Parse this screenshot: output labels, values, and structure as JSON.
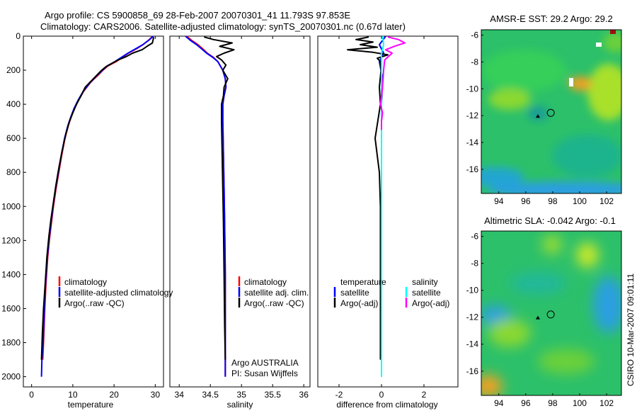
{
  "header": {
    "title_line1": "Argo profile: CS 5900858_69 28-Feb-2007 20070301_41 11.793S 97.853E",
    "title_line2": "Climatology: CARS2006. Satellite-adjusted climatology: synTS_20070301.nc (0.67d later)"
  },
  "colors": {
    "climatology": "#ff0000",
    "satellite": "#0000ff",
    "argo": "#000000",
    "satellite_diff": "#00ffff",
    "argo_adj_diff": "#ff00ff"
  },
  "depth_ticks": [
    "0",
    "200",
    "400",
    "600",
    "800",
    "1000",
    "1200",
    "1400",
    "1600",
    "1800",
    "2000"
  ],
  "chart_data": [
    {
      "type": "line",
      "name": "temperature",
      "xlabel": "temperature",
      "xlim": [
        -2,
        32
      ],
      "ylim": [
        2060,
        0
      ],
      "x_ticks": [
        0,
        10,
        20,
        30
      ],
      "x_tick_labels": [
        "0",
        "10",
        "20",
        "30"
      ],
      "legend": {
        "position": "bottom-right",
        "items": [
          "climatology",
          "satellite-adjusted climatology",
          "Argo(..raw -QC)"
        ]
      },
      "series": [
        {
          "name": "climatology",
          "color": "#ff0000",
          "x": [
            29.2,
            29.0,
            28.3,
            27.0,
            25.4,
            23.5,
            22.0,
            20.5,
            18.5,
            17.3,
            16.3,
            15.2,
            14.2,
            12.6,
            11.4,
            10.4,
            9.6,
            8.9,
            8.1,
            7.3,
            6.6,
            5.9,
            5.3,
            4.8,
            4.3,
            3.9,
            3.5,
            3.2,
            2.9,
            2.7
          ],
          "y": [
            0,
            10,
            25,
            50,
            75,
            100,
            125,
            150,
            175,
            200,
            225,
            250,
            275,
            325,
            375,
            425,
            475,
            525,
            600,
            700,
            800,
            900,
            1000,
            1100,
            1200,
            1300,
            1450,
            1600,
            1800,
            1900
          ]
        },
        {
          "name": "satellite-adjusted climatology",
          "color": "#0000ff",
          "x": [
            29.4,
            29.1,
            28.4,
            27.0,
            25.2,
            23.4,
            21.8,
            20.2,
            18.3,
            17.2,
            16.1,
            15.1,
            14.1,
            12.5,
            11.3,
            10.3,
            9.5,
            8.8,
            8.0,
            7.2,
            6.5,
            5.8,
            5.2,
            4.7,
            4.2,
            3.8,
            3.4,
            3.1,
            2.8,
            2.5,
            2.4
          ],
          "y": [
            0,
            10,
            25,
            50,
            75,
            100,
            125,
            150,
            175,
            200,
            225,
            250,
            275,
            325,
            375,
            425,
            475,
            525,
            600,
            700,
            800,
            900,
            1000,
            1100,
            1200,
            1300,
            1450,
            1600,
            1800,
            1900,
            2000
          ]
        },
        {
          "name": "Argo(..raw -QC)",
          "color": "#000000",
          "x": [
            29.6,
            29.5,
            29.3,
            28.0,
            26.8,
            24.5,
            23.0,
            21.0,
            19.5,
            18.0,
            17.0,
            16.0,
            15.0,
            13.0,
            12.0,
            10.9,
            10.0,
            9.2,
            8.3,
            7.4,
            6.6,
            5.9,
            5.3,
            4.7,
            4.2,
            3.7,
            3.3,
            2.9,
            2.6,
            2.4
          ],
          "y": [
            5,
            20,
            40,
            60,
            80,
            100,
            120,
            140,
            160,
            180,
            200,
            225,
            250,
            300,
            350,
            400,
            450,
            500,
            575,
            675,
            775,
            875,
            975,
            1075,
            1175,
            1300,
            1450,
            1600,
            1750,
            1900
          ]
        }
      ]
    },
    {
      "type": "line",
      "name": "salinity",
      "xlabel": "salinity",
      "xlim": [
        33.85,
        36.1
      ],
      "ylim": [
        2060,
        0
      ],
      "x_ticks": [
        34,
        34.5,
        35,
        35.5,
        36
      ],
      "x_tick_labels": [
        "34",
        "34.5",
        "35",
        "35.5",
        "36"
      ],
      "legend": {
        "position": "right",
        "items": [
          "climatology",
          "satellite adj. clim.",
          "Argo(..raw -QC)"
        ]
      },
      "annotations": [
        "Argo AUSTRALIA",
        "PI: Susan Wijffels"
      ],
      "series": [
        {
          "name": "climatology",
          "color": "#ff0000",
          "x": [
            34.12,
            34.2,
            34.3,
            34.38,
            34.45,
            34.55,
            34.62,
            34.7,
            34.74,
            34.75,
            34.72,
            34.7,
            34.7,
            34.71,
            34.72,
            34.73,
            34.74,
            34.74,
            34.74
          ],
          "y": [
            0,
            25,
            50,
            75,
            100,
            125,
            150,
            200,
            250,
            300,
            350,
            400,
            500,
            700,
            900,
            1100,
            1400,
            1700,
            2000
          ]
        },
        {
          "name": "satellite adj. clim.",
          "color": "#0000ff",
          "x": [
            34.1,
            34.18,
            34.28,
            34.36,
            34.44,
            34.54,
            34.62,
            34.7,
            34.74,
            34.75,
            34.72,
            34.7,
            34.7,
            34.71,
            34.72,
            34.73,
            34.74,
            34.74,
            34.74
          ],
          "y": [
            0,
            25,
            50,
            75,
            100,
            125,
            150,
            200,
            250,
            300,
            350,
            400,
            500,
            700,
            900,
            1100,
            1400,
            1700,
            2000
          ]
        },
        {
          "name": "Argo(..raw -QC)",
          "color": "#000000",
          "x": [
            34.4,
            34.55,
            34.85,
            34.65,
            34.88,
            34.72,
            34.6,
            34.68,
            34.75,
            34.7,
            34.78,
            34.72,
            34.71,
            34.68,
            34.68,
            34.69,
            34.7,
            34.71,
            34.72,
            34.73,
            34.74
          ],
          "y": [
            5,
            20,
            40,
            60,
            80,
            100,
            120,
            140,
            170,
            200,
            250,
            300,
            350,
            400,
            500,
            700,
            900,
            1100,
            1400,
            1700,
            1900
          ]
        }
      ]
    },
    {
      "type": "line",
      "name": "difference",
      "xlabel": "difference from climatology",
      "xlim": [
        -3,
        3.6
      ],
      "ylim": [
        2060,
        0
      ],
      "x_ticks": [
        -2,
        0,
        2
      ],
      "x_tick_labels": [
        "-2",
        "0",
        "2"
      ],
      "legend": {
        "position": "bottom-right",
        "temperature_title": "temperature",
        "temperature_items": [
          "satellite",
          "Argo(-adj)"
        ],
        "salinity_title": "salinity",
        "salinity_items": [
          "satellite",
          "Argo(-adj)"
        ]
      },
      "series": [
        {
          "name": "temperature satellite",
          "color": "#0000ff",
          "x": [
            0.2,
            -0.1,
            0.1,
            -0.1,
            0.05,
            0,
            0,
            0,
            0,
            0,
            0
          ],
          "y": [
            0,
            50,
            100,
            150,
            250,
            400,
            600,
            900,
            1200,
            1600,
            2000
          ]
        },
        {
          "name": "temperature Argo(-adj)",
          "color": "#000000",
          "x": [
            -0.6,
            -1.2,
            -0.4,
            -1.0,
            -0.2,
            -1.6,
            -0.4,
            0.3,
            -0.2,
            -0.05,
            -0.02,
            -0.1,
            -0.05,
            -0.3,
            -0.2,
            -0.1,
            -0.05,
            -0.05,
            -0.05,
            -0.05,
            -0.05
          ],
          "y": [
            5,
            20,
            35,
            50,
            65,
            80,
            95,
            110,
            130,
            150,
            200,
            300,
            400,
            600,
            700,
            800,
            1000,
            1200,
            1500,
            1800,
            1900
          ]
        },
        {
          "name": "salinity satellite",
          "color": "#00ffff",
          "x": [
            0.05,
            0.1,
            0,
            0,
            0,
            0,
            0,
            0,
            0,
            0
          ],
          "y": [
            0,
            50,
            100,
            200,
            400,
            700,
            1000,
            1400,
            1800,
            2000
          ]
        },
        {
          "name": "salinity Argo(-adj)",
          "color": "#ff00ff",
          "x": [
            0.3,
            0.8,
            1.1,
            0.6,
            0.2,
            0.5,
            0.15,
            0.1,
            0.05,
            -0.05,
            0.05,
            0,
            0
          ],
          "y": [
            5,
            20,
            40,
            60,
            80,
            100,
            140,
            200,
            300,
            400,
            450,
            500,
            550
          ]
        }
      ]
    },
    {
      "type": "heatmap",
      "name": "amsre-sst-map",
      "title": "AMSR-E SST: 29.2 Argo: 29.2",
      "xlim": [
        92.7,
        103.1
      ],
      "ylim": [
        -17.8,
        -5.6
      ],
      "x_ticks": [
        94,
        96,
        98,
        100,
        102
      ],
      "x_tick_labels": [
        "94",
        "96",
        "98",
        "100",
        "102"
      ],
      "y_ticks": [
        -6,
        -8,
        -10,
        -12,
        -14,
        -16
      ],
      "y_tick_labels": [
        "-6",
        "-8",
        "-10",
        "-12",
        "-14",
        "-16"
      ],
      "profile_lon": 97.853,
      "profile_lat": -11.793,
      "marker_lon": 96.9,
      "marker_lat": -12.05
    },
    {
      "type": "heatmap",
      "name": "altimetric-sla-map",
      "title": "Altimetric SLA: -0.042 Argo: -0.1",
      "xlim": [
        92.7,
        103.1
      ],
      "ylim": [
        -17.8,
        -5.6
      ],
      "x_ticks": [
        94,
        96,
        98,
        100,
        102
      ],
      "x_tick_labels": [
        "94",
        "96",
        "98",
        "100",
        "102"
      ],
      "y_ticks": [
        -6,
        -8,
        -10,
        -12,
        -14,
        -16
      ],
      "y_tick_labels": [
        "-6",
        "-8",
        "-10",
        "-12",
        "-14",
        "-16"
      ],
      "profile_lon": 97.853,
      "profile_lat": -11.793,
      "marker_lon": 96.9,
      "marker_lat": -12.05
    }
  ],
  "footer": {
    "stamp": "CSIRO 10-Mar-2007 09:01:11"
  }
}
